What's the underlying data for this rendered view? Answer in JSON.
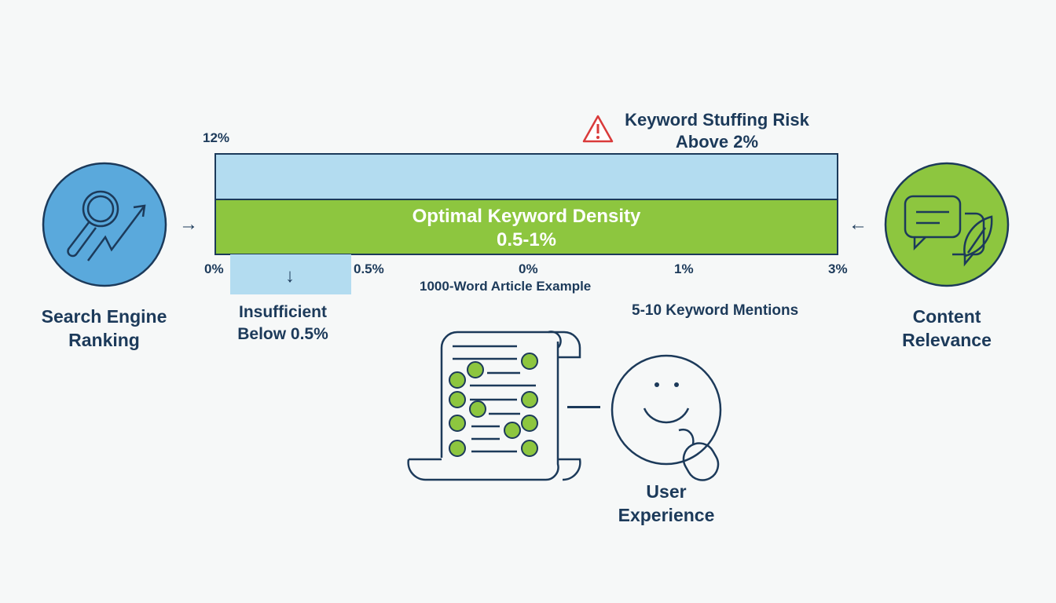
{
  "colors": {
    "navy": "#1c3a5a",
    "light_blue": "#b3dcf0",
    "green": "#8dc63f",
    "circle_blue": "#5aa9dc",
    "warning_red": "#d93a3a"
  },
  "axis": {
    "top_label": "12%",
    "ticks": [
      "0%",
      "0.5%",
      "0%",
      "1%",
      "3%"
    ]
  },
  "warning": {
    "line1": "Keyword Stuffing Risk",
    "line2": "Above 2%",
    "icon": "warning-triangle-icon"
  },
  "optimal": {
    "line1": "Optimal Keyword Density",
    "line2": "0.5-1%"
  },
  "insufficient": {
    "line1": "Insufficient",
    "line2": "Below 0.5%"
  },
  "example_label": "1000-Word Article Example",
  "mentions_label": "5-10 Keyword Mentions",
  "left": {
    "line1": "Search Engine",
    "line2": "Ranking",
    "icon": "magnifier-growth-icon"
  },
  "right": {
    "line1": "Content",
    "line2": "Relevance",
    "icon": "chat-leaf-icon"
  },
  "bottom": {
    "line1": "User",
    "line2": "Experience",
    "icon": "smiley-mouse-icon"
  }
}
